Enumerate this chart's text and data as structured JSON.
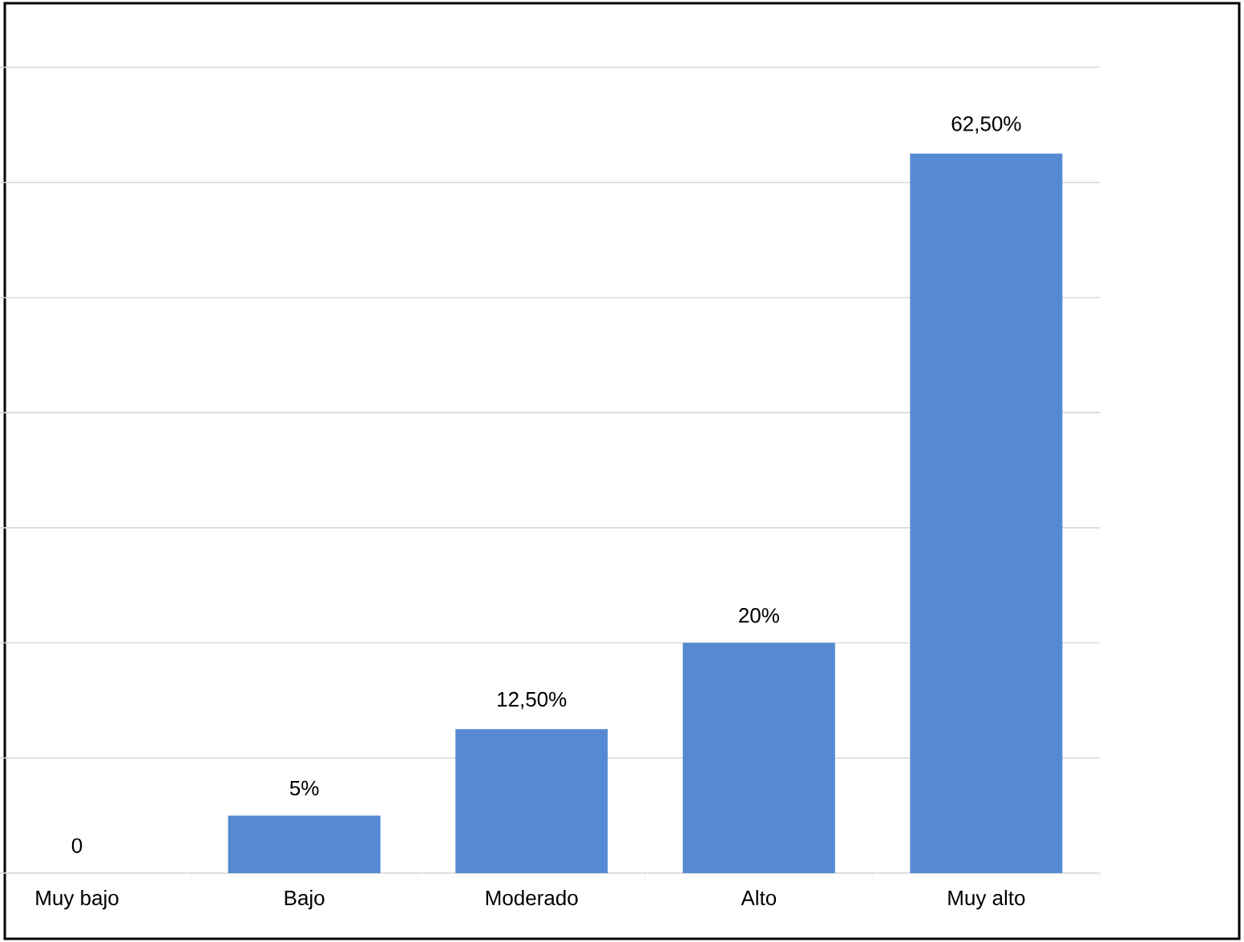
{
  "chart_data": {
    "type": "bar",
    "categories": [
      "Muy bajo",
      "Bajo",
      "Moderado",
      "Alto",
      "Muy alto"
    ],
    "values": [
      0,
      5,
      12.5,
      20,
      62.5
    ],
    "value_labels": [
      "0",
      "5%",
      "12,50%",
      "20%",
      "62,50%"
    ],
    "color": "#5589d2",
    "ylim": [
      0,
      70
    ],
    "yticks": [
      {
        "value": 0,
        "label": null
      },
      {
        "value": 10,
        "label": null
      },
      {
        "value": 20,
        "label": null
      },
      {
        "value": 30,
        "label": null
      },
      {
        "value": 40,
        "label": null
      },
      {
        "value": 50,
        "label": null
      },
      {
        "value": 60,
        "label": null
      },
      {
        "value": 70,
        "label": null
      }
    ],
    "grid": "y",
    "tick_labels": "x"
  }
}
